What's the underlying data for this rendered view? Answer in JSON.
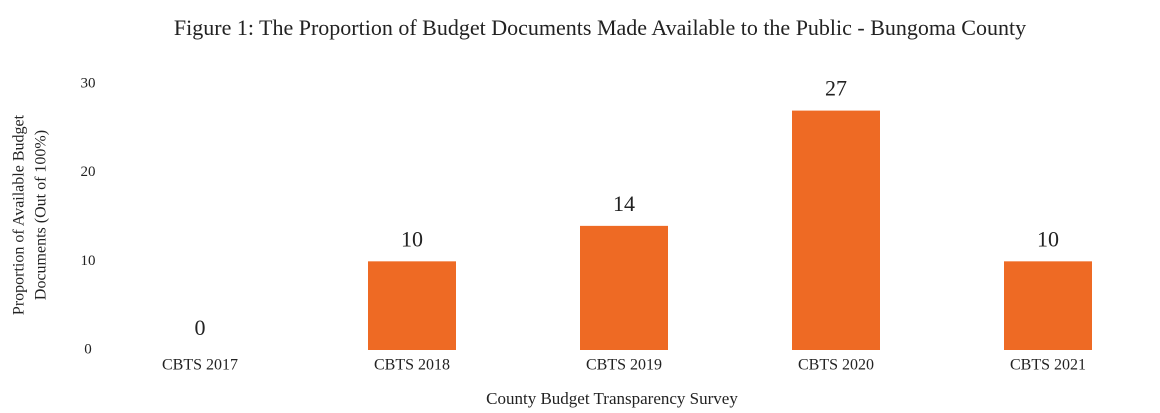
{
  "chart_data": {
    "type": "bar",
    "title": "Figure 1: The Proportion of Budget Documents Made Available to the Public - Bungoma County",
    "x_label": "County Budget Transparency Survey",
    "y_label": [
      "Proportion of Available Budget",
      "Documents (Out of 100%)"
    ],
    "categories": [
      "CBTS 2017",
      "CBTS 2018",
      "CBTS 2019",
      "CBTS 2020",
      "CBTS 2021"
    ],
    "values": [
      0,
      10,
      14,
      27,
      10
    ],
    "color": "#ee6a24",
    "ylim": [
      0,
      30
    ],
    "yticks": [
      0,
      10,
      20,
      30
    ],
    "grid": false
  }
}
